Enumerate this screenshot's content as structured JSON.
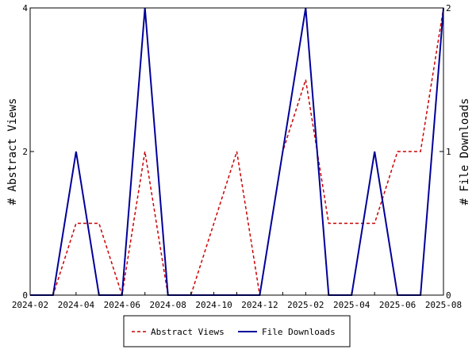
{
  "chart_data": {
    "type": "line",
    "x": [
      "2024-02",
      "2024-03",
      "2024-04",
      "2024-05",
      "2024-06",
      "2024-07",
      "2024-08",
      "2024-09",
      "2024-10",
      "2024-11",
      "2024-12",
      "2025-01",
      "2025-02",
      "2025-03",
      "2025-04",
      "2025-05",
      "2025-06",
      "2025-07",
      "2025-08"
    ],
    "x_ticks": [
      "2024-02",
      "2024-04",
      "2024-06",
      "2024-08",
      "2024-10",
      "2024-12",
      "2025-02",
      "2025-04",
      "2025-06",
      "2025-08"
    ],
    "series": [
      {
        "name": "Abstract Views",
        "axis": "left",
        "color": "#cc0000",
        "style": "dashed",
        "values": [
          0,
          0,
          1,
          1,
          0,
          2,
          0,
          0,
          1,
          2,
          0,
          2,
          3,
          1,
          1,
          1,
          2,
          2,
          4
        ]
      },
      {
        "name": "File Downloads",
        "axis": "right",
        "color": "#000099",
        "style": "solid",
        "values": [
          0,
          0,
          1,
          0,
          0,
          2,
          0,
          0,
          0,
          0,
          0,
          1,
          2,
          0,
          0,
          1,
          0,
          0,
          2
        ]
      }
    ],
    "ylabel": "# Abstract Views",
    "y2label": "# File Downloads",
    "ylim": [
      0,
      4
    ],
    "y2lim": [
      0,
      2
    ],
    "y_ticks": [
      0,
      2,
      4
    ],
    "y2_ticks": [
      0,
      1,
      2
    ],
    "grid": false,
    "legend_position": "bottom-center"
  }
}
